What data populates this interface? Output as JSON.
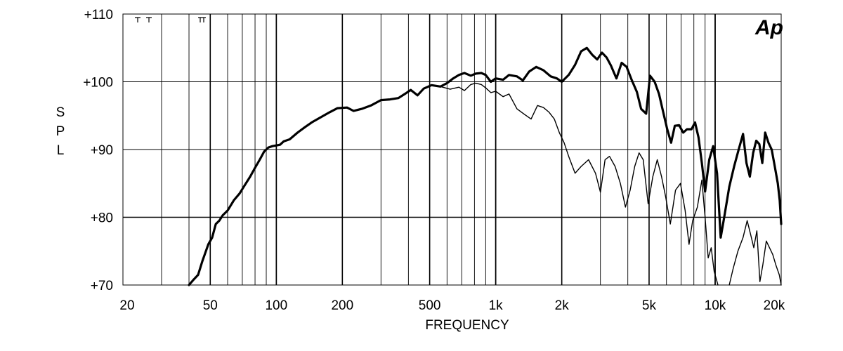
{
  "chart_data": {
    "type": "line",
    "title": "",
    "xlabel": "FREQUENCY",
    "ylabel": "SPL",
    "logo": "Ap",
    "x_scale": "log",
    "xlim": [
      20,
      20000
    ],
    "ylim": [
      70,
      110
    ],
    "x_ticks": [
      {
        "value": 20,
        "label": "20"
      },
      {
        "value": 50,
        "label": "50"
      },
      {
        "value": 100,
        "label": "100"
      },
      {
        "value": 200,
        "label": "200"
      },
      {
        "value": 500,
        "label": "500"
      },
      {
        "value": 1000,
        "label": "1k"
      },
      {
        "value": 2000,
        "label": "2k"
      },
      {
        "value": 5000,
        "label": "5k"
      },
      {
        "value": 10000,
        "label": "10k"
      },
      {
        "value": 20000,
        "label": "20k"
      }
    ],
    "y_ticks": [
      {
        "value": 70,
        "label": "+70"
      },
      {
        "value": 80,
        "label": "+80"
      },
      {
        "value": 90,
        "label": "+90"
      },
      {
        "value": 100,
        "label": "+100"
      },
      {
        "value": 110,
        "label": "+110"
      }
    ],
    "grid": true,
    "series": [
      {
        "style": "thick",
        "color": "#000000",
        "points": [
          [
            40,
            70.0
          ],
          [
            42,
            70.8
          ],
          [
            44,
            71.5
          ],
          [
            46,
            73.5
          ],
          [
            49,
            76.0
          ],
          [
            51,
            77.0
          ],
          [
            53,
            79.0
          ],
          [
            55,
            79.5
          ],
          [
            57,
            80.3
          ],
          [
            60,
            81.0
          ],
          [
            64,
            82.5
          ],
          [
            68,
            83.5
          ],
          [
            72,
            84.8
          ],
          [
            76,
            86.0
          ],
          [
            80,
            87.3
          ],
          [
            84,
            88.5
          ],
          [
            88,
            89.7
          ],
          [
            92,
            90.3
          ],
          [
            96,
            90.5
          ],
          [
            100,
            90.6
          ],
          [
            104,
            90.7
          ],
          [
            108,
            91.2
          ],
          [
            115,
            91.5
          ],
          [
            125,
            92.5
          ],
          [
            135,
            93.3
          ],
          [
            145,
            94.0
          ],
          [
            160,
            94.8
          ],
          [
            175,
            95.5
          ],
          [
            190,
            96.1
          ],
          [
            210,
            96.2
          ],
          [
            225,
            95.7
          ],
          [
            245,
            96.0
          ],
          [
            270,
            96.5
          ],
          [
            300,
            97.3
          ],
          [
            330,
            97.4
          ],
          [
            360,
            97.6
          ],
          [
            385,
            98.2
          ],
          [
            410,
            98.8
          ],
          [
            440,
            98.0
          ],
          [
            470,
            99.0
          ],
          [
            510,
            99.5
          ],
          [
            560,
            99.3
          ],
          [
            600,
            99.8
          ],
          [
            640,
            100.5
          ],
          [
            680,
            101.0
          ],
          [
            720,
            101.3
          ],
          [
            770,
            100.9
          ],
          [
            810,
            101.2
          ],
          [
            860,
            101.3
          ],
          [
            900,
            101.0
          ],
          [
            950,
            100.0
          ],
          [
            1000,
            100.5
          ],
          [
            1080,
            100.3
          ],
          [
            1150,
            101.0
          ],
          [
            1250,
            100.8
          ],
          [
            1330,
            100.2
          ],
          [
            1420,
            101.5
          ],
          [
            1530,
            102.2
          ],
          [
            1650,
            101.7
          ],
          [
            1780,
            100.8
          ],
          [
            1900,
            100.5
          ],
          [
            2000,
            100.0
          ],
          [
            2150,
            101.0
          ],
          [
            2300,
            102.5
          ],
          [
            2450,
            104.5
          ],
          [
            2600,
            105.0
          ],
          [
            2750,
            104.0
          ],
          [
            2900,
            103.3
          ],
          [
            3050,
            104.3
          ],
          [
            3200,
            103.6
          ],
          [
            3350,
            102.4
          ],
          [
            3550,
            100.5
          ],
          [
            3750,
            102.8
          ],
          [
            3950,
            102.2
          ],
          [
            4150,
            100.4
          ],
          [
            4400,
            98.5
          ],
          [
            4600,
            96.0
          ],
          [
            4850,
            95.3
          ],
          [
            5050,
            100.9
          ],
          [
            5300,
            100.0
          ],
          [
            5550,
            98.2
          ],
          [
            5800,
            95.5
          ],
          [
            6050,
            93.0
          ],
          [
            6300,
            91.0
          ],
          [
            6550,
            93.5
          ],
          [
            6850,
            93.6
          ],
          [
            7150,
            92.5
          ],
          [
            7450,
            93.0
          ],
          [
            7800,
            93.0
          ],
          [
            8100,
            94.0
          ],
          [
            8400,
            91.8
          ],
          [
            8700,
            88.0
          ],
          [
            9000,
            83.8
          ],
          [
            9400,
            88.5
          ],
          [
            9800,
            90.5
          ],
          [
            10200,
            86.5
          ],
          [
            10600,
            77.0
          ],
          [
            11000,
            80.0
          ],
          [
            11600,
            84.5
          ],
          [
            12200,
            87.5
          ],
          [
            12800,
            90.0
          ],
          [
            13400,
            92.3
          ],
          [
            13900,
            88.0
          ],
          [
            14400,
            86.0
          ],
          [
            14900,
            89.5
          ],
          [
            15400,
            91.3
          ],
          [
            15900,
            90.8
          ],
          [
            16400,
            88.0
          ],
          [
            16900,
            92.5
          ],
          [
            17500,
            91.0
          ],
          [
            18100,
            90.0
          ],
          [
            18700,
            87.5
          ],
          [
            19300,
            85.0
          ],
          [
            19700,
            82.5
          ],
          [
            20000,
            79.0
          ]
        ]
      },
      {
        "style": "thin",
        "color": "#000000",
        "points": [
          [
            560,
            99.3
          ],
          [
            620,
            98.9
          ],
          [
            680,
            99.2
          ],
          [
            720,
            98.7
          ],
          [
            770,
            99.6
          ],
          [
            810,
            99.8
          ],
          [
            860,
            99.6
          ],
          [
            900,
            99.1
          ],
          [
            950,
            98.4
          ],
          [
            1000,
            98.6
          ],
          [
            1080,
            97.8
          ],
          [
            1150,
            98.2
          ],
          [
            1250,
            96.0
          ],
          [
            1350,
            95.2
          ],
          [
            1450,
            94.5
          ],
          [
            1550,
            96.5
          ],
          [
            1650,
            96.2
          ],
          [
            1750,
            95.5
          ],
          [
            1850,
            94.5
          ],
          [
            1950,
            92.5
          ],
          [
            2050,
            91.0
          ],
          [
            2150,
            89.0
          ],
          [
            2300,
            86.5
          ],
          [
            2450,
            87.5
          ],
          [
            2650,
            88.5
          ],
          [
            2850,
            86.5
          ],
          [
            3000,
            83.7
          ],
          [
            3150,
            88.5
          ],
          [
            3300,
            89.0
          ],
          [
            3500,
            87.5
          ],
          [
            3700,
            85.0
          ],
          [
            3900,
            81.5
          ],
          [
            4100,
            84.0
          ],
          [
            4300,
            87.5
          ],
          [
            4500,
            89.5
          ],
          [
            4700,
            88.5
          ],
          [
            4950,
            82.0
          ],
          [
            5200,
            86.0
          ],
          [
            5450,
            88.5
          ],
          [
            5700,
            86.0
          ],
          [
            5950,
            83.0
          ],
          [
            6250,
            79.0
          ],
          [
            6600,
            84.0
          ],
          [
            6950,
            85.0
          ],
          [
            7300,
            81.0
          ],
          [
            7600,
            76.0
          ],
          [
            7900,
            79.5
          ],
          [
            8300,
            81.5
          ],
          [
            8700,
            85.5
          ],
          [
            9000,
            80.0
          ],
          [
            9300,
            74.0
          ],
          [
            9600,
            75.5
          ],
          [
            9900,
            72.0
          ],
          [
            10300,
            69.0
          ]
        ]
      },
      {
        "style": "thin",
        "color": "#000000",
        "points": [
          [
            11600,
            69.0
          ],
          [
            12100,
            72.5
          ],
          [
            12700,
            75.0
          ],
          [
            13400,
            77.0
          ],
          [
            14000,
            79.5
          ],
          [
            14500,
            77.5
          ],
          [
            15000,
            75.5
          ],
          [
            15500,
            78.0
          ],
          [
            16000,
            70.5
          ],
          [
            16500,
            73.0
          ],
          [
            17100,
            76.5
          ],
          [
            17700,
            75.5
          ],
          [
            18300,
            74.5
          ],
          [
            18900,
            73.0
          ],
          [
            19600,
            71.5
          ],
          [
            20000,
            69.0
          ]
        ]
      }
    ]
  }
}
